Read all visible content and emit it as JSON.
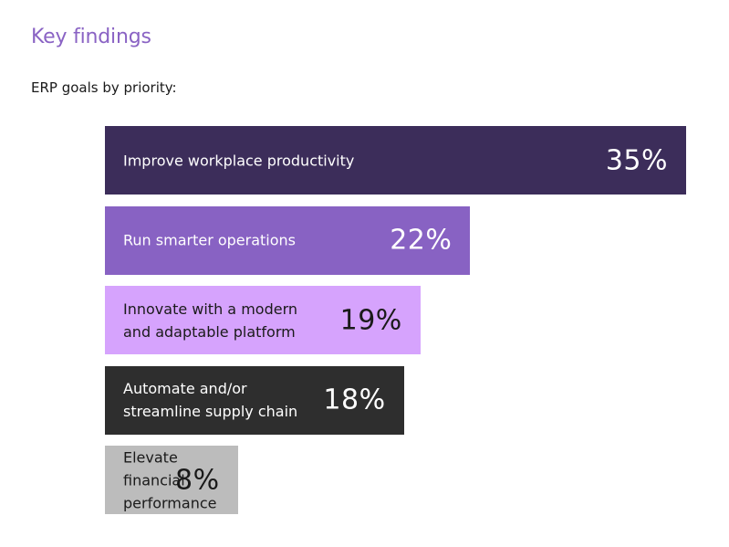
{
  "header": {
    "title": "Key findings",
    "subtitle": "ERP goals by priority:"
  },
  "chart_data": {
    "type": "bar",
    "orientation": "horizontal",
    "title": "ERP goals by priority:",
    "categories": [
      "Improve workplace productivity",
      "Run smarter operations",
      "Innovate with a modern\nand adaptable platform",
      "Automate and/or\nstreamline supply chain",
      "Elevate financial\nperformance"
    ],
    "values": [
      35,
      22,
      19,
      18,
      8
    ],
    "value_labels": [
      "35%",
      "22%",
      "19%",
      "18%",
      "8%"
    ],
    "colors": [
      "#3c2d5a",
      "#8862c3",
      "#d6a3fd",
      "#2e2e2e",
      "#bcbcbc"
    ],
    "label_colors": [
      "#ffffff",
      "#ffffff",
      "#1a1a1a",
      "#ffffff",
      "#1a1a1a"
    ],
    "xlim": [
      0,
      35
    ],
    "grid": false,
    "legend": "none"
  }
}
